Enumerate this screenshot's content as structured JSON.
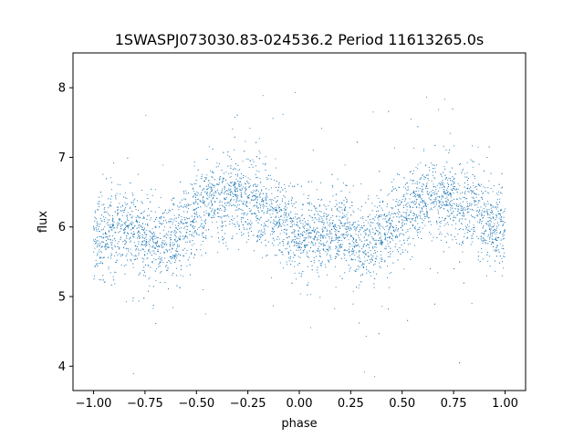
{
  "chart_data": {
    "type": "scatter",
    "title": "1SWASPJ073030.83-024536.2 Period 11613265.0s",
    "xlabel": "phase",
    "ylabel": "flux",
    "xlim": [
      -1.1,
      1.1
    ],
    "ylim": [
      3.65,
      8.5
    ],
    "x_ticks": [
      -1.0,
      -0.75,
      -0.5,
      -0.25,
      0.0,
      0.25,
      0.5,
      0.75,
      1.0
    ],
    "x_tick_labels": [
      "−1.00",
      "−0.75",
      "−0.50",
      "−0.25",
      "0.00",
      "0.25",
      "0.50",
      "0.75",
      "1.00"
    ],
    "y_ticks": [
      4,
      5,
      6,
      7,
      8
    ],
    "y_tick_labels": [
      "4",
      "5",
      "6",
      "7",
      "8"
    ],
    "grid": false,
    "legend": "none",
    "marker_color": "#1f77b4",
    "series": [
      {
        "x_range": [
          -1.0,
          1.0
        ],
        "phase_profile": {
          "phase": [
            -1.0,
            -0.9,
            -0.8,
            -0.7,
            -0.6,
            -0.5,
            -0.4,
            -0.3,
            -0.2,
            -0.1,
            0.0,
            0.1,
            0.2,
            0.3,
            0.4,
            0.5,
            0.6,
            0.7,
            0.8,
            0.9,
            1.0
          ],
          "median_flux": [
            5.8,
            5.9,
            5.95,
            5.75,
            5.85,
            6.2,
            6.4,
            6.4,
            6.35,
            6.1,
            5.9,
            5.85,
            5.95,
            5.75,
            5.85,
            6.2,
            6.4,
            6.4,
            6.35,
            6.1,
            5.9
          ]
        },
        "flux_range": [
          3.85,
          8.3
        ]
      }
    ]
  }
}
